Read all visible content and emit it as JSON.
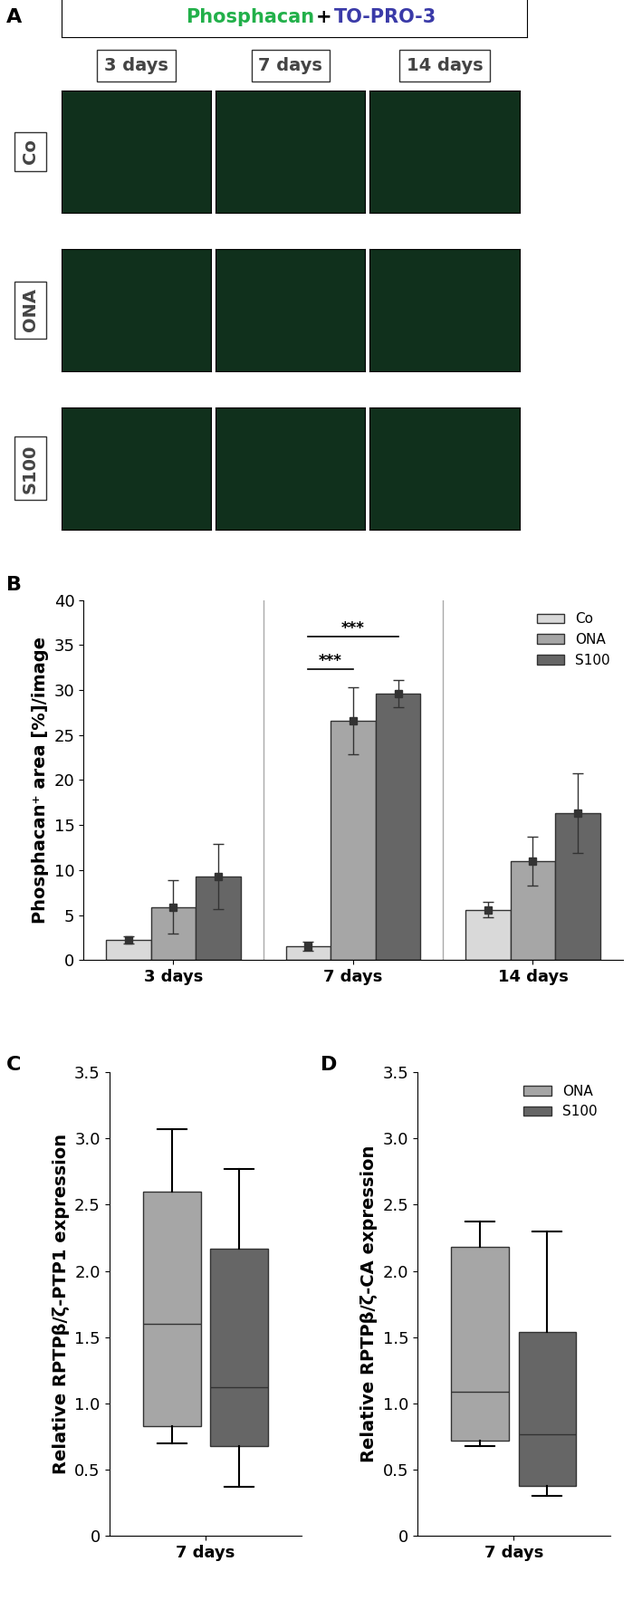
{
  "panel_labels": [
    "A",
    "B",
    "C",
    "D"
  ],
  "image_panel": {
    "stains": [
      {
        "name": "Phosphacan",
        "color": "#22b04a"
      },
      {
        "name": "TO-PRO-3",
        "color": "#3a3aa8"
      }
    ],
    "joiner": "+",
    "columns": [
      "3 days",
      "7 days",
      "14 days"
    ],
    "rows": [
      "Co",
      "ONA",
      "S100"
    ]
  },
  "chart_data": [
    {
      "type": "bar",
      "categories": [
        "3 days",
        "7 days",
        "14 days"
      ],
      "series": [
        {
          "name": "Co",
          "color": "#d9d9d9",
          "values": [
            2.2,
            1.5,
            5.6
          ],
          "errors": [
            0.4,
            0.5,
            0.9
          ]
        },
        {
          "name": "ONA",
          "color": "#a6a6a6",
          "values": [
            5.9,
            26.6,
            11.0
          ],
          "errors": [
            3.0,
            3.7,
            2.7
          ]
        },
        {
          "name": "S100",
          "color": "#666666",
          "values": [
            9.3,
            29.6,
            16.3
          ],
          "errors": [
            3.6,
            1.5,
            4.4
          ]
        }
      ],
      "ylabel": "Phosphacan⁺ area [%]/image",
      "ylim": [
        0,
        40
      ],
      "yticks": [
        0,
        5,
        10,
        15,
        20,
        25,
        30,
        35,
        40
      ],
      "legend": "upper right",
      "marker": "square",
      "annotations": [
        {
          "text": "***",
          "category": "7 days",
          "from": "Co",
          "to": "ONA"
        },
        {
          "text": "***",
          "category": "7 days",
          "from": "Co",
          "to": "S100"
        }
      ]
    },
    {
      "type": "box",
      "categories": [
        "7 days"
      ],
      "ylabel": "Relative RPTPβ/ζ-PTP1 expression",
      "ylim": [
        0,
        3.5
      ],
      "yticks": [
        0,
        0.5,
        1.0,
        1.5,
        2.0,
        2.5,
        3.0,
        3.5
      ],
      "series": [
        {
          "name": "ONA",
          "color": "#a6a6a6",
          "whislo": 0.7,
          "q1": 0.83,
          "median": 1.6,
          "q3": 2.6,
          "whishi": 3.07
        },
        {
          "name": "S100",
          "color": "#666666",
          "whislo": 0.37,
          "q1": 0.68,
          "median": 1.12,
          "q3": 2.17,
          "whishi": 2.77
        }
      ]
    },
    {
      "type": "box",
      "categories": [
        "7 days"
      ],
      "ylabel": "Relative RPTPβ/ζ-CA expression",
      "ylim": [
        0,
        3.5
      ],
      "yticks": [
        0,
        0.5,
        1.0,
        1.5,
        2.0,
        2.5,
        3.0,
        3.5
      ],
      "legend": "upper right",
      "series": [
        {
          "name": "ONA",
          "color": "#a6a6a6",
          "whislo": 0.68,
          "q1": 0.72,
          "median": 1.09,
          "q3": 2.18,
          "whishi": 2.37
        },
        {
          "name": "S100",
          "color": "#666666",
          "whislo": 0.3,
          "q1": 0.38,
          "median": 0.77,
          "q3": 1.54,
          "whishi": 2.3
        }
      ]
    }
  ]
}
